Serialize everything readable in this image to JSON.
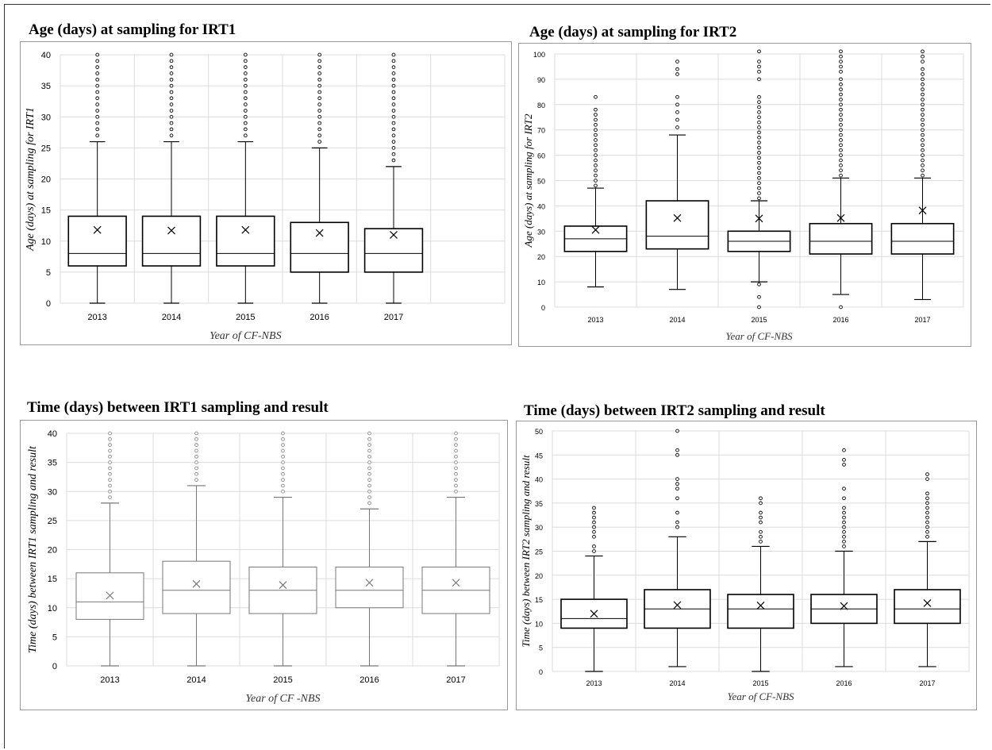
{
  "chart_data": [
    {
      "type": "box",
      "title": "Age (days) at sampling for IRT1",
      "xlabel": "Year of CF-NBS",
      "ylabel": "Age (days) at sampling for IRT1",
      "ylim": [
        0,
        40
      ],
      "yticks": [
        0,
        5,
        10,
        15,
        20,
        25,
        30,
        35,
        40
      ],
      "categories": [
        "2013",
        "2014",
        "2015",
        "2016",
        "2017"
      ],
      "boxes": [
        {
          "min": 0,
          "q1": 6,
          "median": 8,
          "q3": 14,
          "max": 26,
          "mean": 11.8,
          "outliers": [
            27,
            28,
            29,
            30,
            31,
            32,
            33,
            34,
            35,
            36,
            37,
            38,
            39,
            40
          ]
        },
        {
          "min": 0,
          "q1": 6,
          "median": 8,
          "q3": 14,
          "max": 26,
          "mean": 11.7,
          "outliers": [
            27,
            28,
            29,
            30,
            31,
            32,
            33,
            34,
            35,
            36,
            37,
            38,
            39,
            40
          ]
        },
        {
          "min": 0,
          "q1": 6,
          "median": 8,
          "q3": 14,
          "max": 26,
          "mean": 11.8,
          "outliers": [
            27,
            28,
            29,
            30,
            31,
            32,
            33,
            34,
            35,
            36,
            37,
            38,
            39,
            40
          ]
        },
        {
          "min": 0,
          "q1": 5,
          "median": 8,
          "q3": 13,
          "max": 25,
          "mean": 11.3,
          "outliers": [
            26,
            27,
            28,
            29,
            30,
            31,
            32,
            33,
            34,
            35,
            36,
            37,
            38,
            39,
            40
          ]
        },
        {
          "min": 0,
          "q1": 5,
          "median": 8,
          "q3": 12,
          "max": 22,
          "mean": 11.0,
          "outliers": [
            23,
            24,
            25,
            26,
            27,
            28,
            29,
            30,
            31,
            32,
            33,
            34,
            35,
            36,
            37,
            38,
            39,
            40
          ]
        }
      ],
      "extra_empty_slot": true,
      "grid": true,
      "style": "bold"
    },
    {
      "type": "box",
      "title": "Age (days) at sampling for IRT2",
      "xlabel": "Year of CF-NBS",
      "ylabel": "Age (days) at sampling for IRT2",
      "ylim": [
        0,
        100
      ],
      "yticks": [
        0,
        10,
        20,
        30,
        40,
        50,
        60,
        70,
        80,
        90,
        100
      ],
      "categories": [
        "2013",
        "2014",
        "2015",
        "2016",
        "2017"
      ],
      "boxes": [
        {
          "min": 8,
          "q1": 22,
          "median": 27,
          "q3": 32,
          "max": 47,
          "mean": 30.5,
          "outliers": [
            48,
            50,
            52,
            54,
            56,
            58,
            60,
            62,
            64,
            66,
            68,
            70,
            72,
            74,
            76,
            78,
            83
          ]
        },
        {
          "min": 7,
          "q1": 23,
          "median": 28,
          "q3": 42,
          "max": 68,
          "mean": 35.2,
          "outliers": [
            71,
            74,
            77,
            80,
            83,
            92,
            94,
            97
          ]
        },
        {
          "min": 10,
          "q1": 22,
          "median": 26,
          "q3": 30,
          "max": 42,
          "mean": 35.0,
          "outliers": [
            0,
            4,
            9,
            43,
            45,
            47,
            49,
            51,
            53,
            55,
            57,
            59,
            61,
            63,
            65,
            67,
            69,
            71,
            73,
            75,
            77,
            79,
            81,
            83,
            90,
            93,
            95,
            97,
            101
          ]
        },
        {
          "min": 5,
          "q1": 21,
          "median": 26,
          "q3": 33,
          "max": 51,
          "mean": 35.2,
          "outliers": [
            0,
            52,
            54,
            56,
            58,
            60,
            62,
            64,
            66,
            68,
            70,
            72,
            74,
            76,
            78,
            80,
            82,
            84,
            86,
            88,
            90,
            93,
            95,
            97,
            99,
            101
          ]
        },
        {
          "min": 3,
          "q1": 21,
          "median": 26,
          "q3": 33,
          "max": 51,
          "mean": 38.2,
          "outliers": [
            52,
            54,
            56,
            58,
            60,
            62,
            64,
            66,
            68,
            70,
            72,
            74,
            76,
            78,
            80,
            82,
            84,
            86,
            88,
            90,
            92,
            94,
            97,
            99,
            101
          ]
        }
      ],
      "grid": true,
      "style": "bold"
    },
    {
      "type": "box",
      "title": "Time (days) between IRT1 sampling and result",
      "xlabel": "Year of CF -NBS",
      "ylabel": "Time (days) between IRT1 sampling and result",
      "ylim": [
        0,
        40
      ],
      "yticks": [
        0,
        5,
        10,
        15,
        20,
        25,
        30,
        35,
        40
      ],
      "categories": [
        "2013",
        "2014",
        "2015",
        "2016",
        "2017"
      ],
      "boxes": [
        {
          "min": 0,
          "q1": 8,
          "median": 11,
          "q3": 16,
          "max": 28,
          "mean": 12.1,
          "outliers": [
            29,
            30,
            31,
            32,
            33,
            34,
            35,
            36,
            37,
            38,
            39,
            40
          ]
        },
        {
          "min": 0,
          "q1": 9,
          "median": 13,
          "q3": 18,
          "max": 31,
          "mean": 14.1,
          "outliers": [
            32,
            33,
            34,
            35,
            36,
            37,
            38,
            39,
            40
          ]
        },
        {
          "min": 0,
          "q1": 9,
          "median": 13,
          "q3": 17,
          "max": 29,
          "mean": 13.9,
          "outliers": [
            30,
            31,
            32,
            33,
            34,
            35,
            36,
            37,
            38,
            39,
            40
          ]
        },
        {
          "min": 0,
          "q1": 10,
          "median": 13,
          "q3": 17,
          "max": 27,
          "mean": 14.3,
          "outliers": [
            28,
            29,
            30,
            31,
            32,
            33,
            34,
            35,
            36,
            37,
            38,
            39,
            40
          ]
        },
        {
          "min": 0,
          "q1": 9,
          "median": 13,
          "q3": 17,
          "max": 29,
          "mean": 14.3,
          "outliers": [
            30,
            31,
            32,
            33,
            34,
            35,
            36,
            37,
            38,
            39,
            40
          ]
        }
      ],
      "grid": true,
      "style": "light"
    },
    {
      "type": "box",
      "title": "Time (days) between IRT2 sampling and result",
      "xlabel": "Year of CF-NBS",
      "ylabel": "Time (days) between IRT2 sampling and result",
      "ylim": [
        0,
        50
      ],
      "yticks": [
        0,
        5,
        10,
        15,
        20,
        25,
        30,
        35,
        40,
        45,
        50
      ],
      "categories": [
        "2013",
        "2014",
        "2015",
        "2016",
        "2017"
      ],
      "boxes": [
        {
          "min": 0,
          "q1": 9,
          "median": 11,
          "q3": 15,
          "max": 24,
          "mean": 12.0,
          "outliers": [
            25,
            26,
            28,
            29,
            30,
            31,
            32,
            33,
            34
          ]
        },
        {
          "min": 1,
          "q1": 9,
          "median": 13,
          "q3": 17,
          "max": 28,
          "mean": 13.8,
          "outliers": [
            30,
            31,
            33,
            36,
            38,
            39,
            40,
            45,
            46,
            50
          ]
        },
        {
          "min": 0,
          "q1": 9,
          "median": 13,
          "q3": 16,
          "max": 26,
          "mean": 13.7,
          "outliers": [
            27,
            28,
            29,
            31,
            32,
            33,
            35,
            36
          ]
        },
        {
          "min": 1,
          "q1": 10,
          "median": 13,
          "q3": 16,
          "max": 25,
          "mean": 13.6,
          "outliers": [
            26,
            27,
            28,
            29,
            30,
            31,
            32,
            33,
            34,
            36,
            38,
            43,
            44,
            46
          ]
        },
        {
          "min": 1,
          "q1": 10,
          "median": 13,
          "q3": 17,
          "max": 27,
          "mean": 14.2,
          "outliers": [
            28,
            29,
            30,
            31,
            32,
            33,
            34,
            35,
            36,
            37,
            40,
            41
          ]
        }
      ],
      "grid": true,
      "style": "bold"
    }
  ]
}
